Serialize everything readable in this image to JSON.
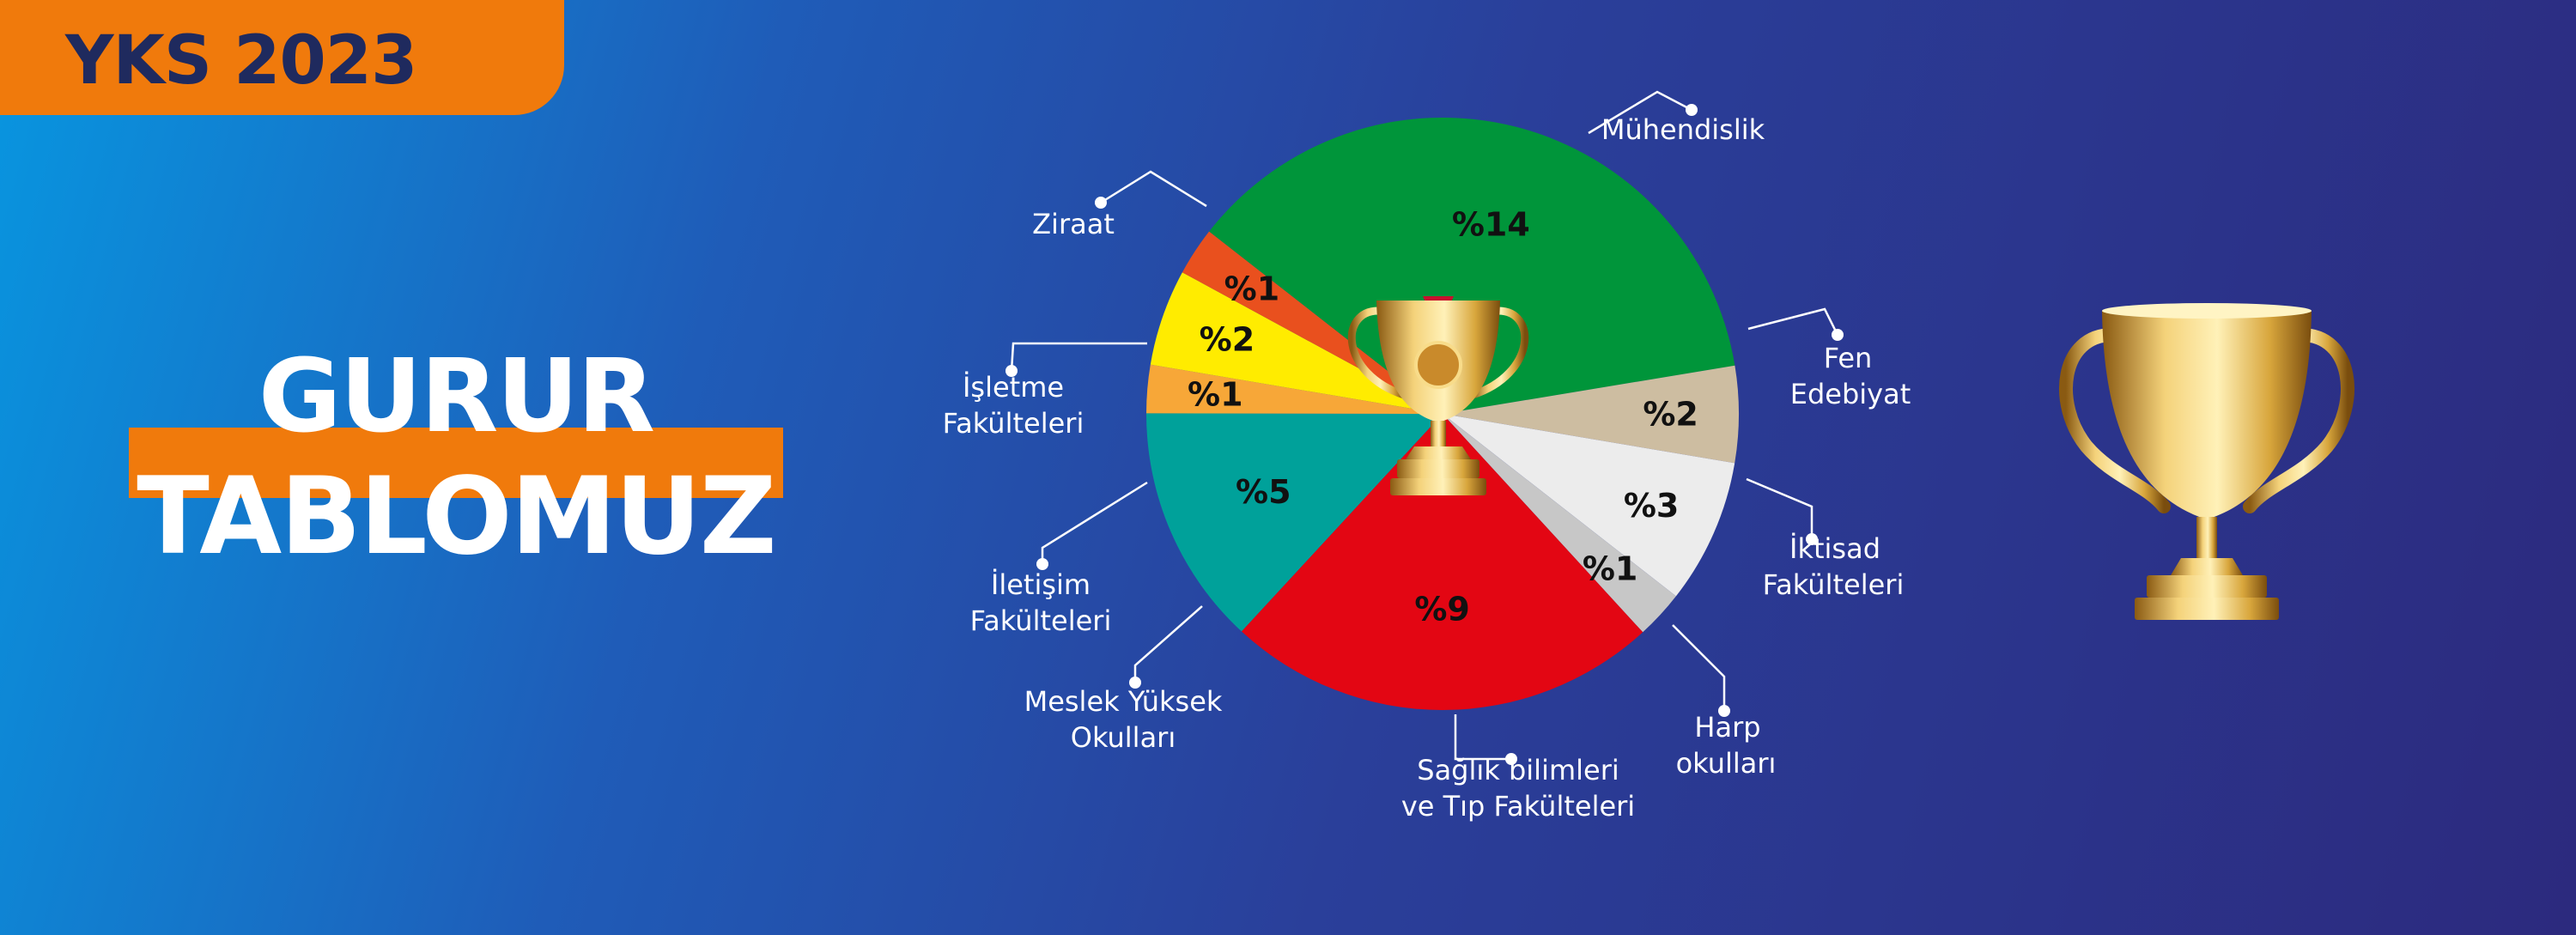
{
  "badge": {
    "text": "YKS 2023"
  },
  "headline": {
    "line1": "GURUR",
    "line2": "TABLOMUZ"
  },
  "colors": {
    "accent_orange": "#f07a0c",
    "badge_text": "#1f2a5e",
    "label_text": "#ffffff",
    "slice_text": "#111111"
  },
  "icons": {
    "center": "trophy-icon",
    "decor": "trophy-icon"
  },
  "chart_data": {
    "type": "pie",
    "title": "",
    "slices": [
      {
        "category": "Mühendislik",
        "label": "%14",
        "value": 14,
        "color": "#00953a"
      },
      {
        "category": "Fen Edebiyat",
        "label": "%2",
        "value": 2,
        "color": "#cdbda1"
      },
      {
        "category": "İktisad Fakülteleri",
        "label": "%3",
        "value": 3,
        "color": "#ececec"
      },
      {
        "category": "Harp okulları",
        "label": "%1",
        "value": 1,
        "color": "#c7c7c7"
      },
      {
        "category": "Sağlık bilimleri ve Tıp Fakülteleri",
        "label": "%9",
        "value": 9,
        "color": "#e30613"
      },
      {
        "category": "Meslek Yüksek Okulları",
        "label": "%5",
        "value": 5,
        "color": "#00a19a"
      },
      {
        "category": "İletişim Fakülteleri",
        "label": "%1",
        "value": 1,
        "color": "#f7a738"
      },
      {
        "category": "İşletme Fakülteleri",
        "label": "%2",
        "value": 2,
        "color": "#ffec00"
      },
      {
        "category": "Ziraat",
        "label": "%1",
        "value": 1,
        "color": "#e9501e"
      }
    ],
    "callout_labels": [
      [
        "Mühendislik"
      ],
      [
        "Fen",
        "Edebiyat"
      ],
      [
        "İktisad",
        "Fakülteleri"
      ],
      [
        "Harp",
        "okulları"
      ],
      [
        "Sağlık bilimleri",
        "ve Tıp Fakülteleri"
      ],
      [
        "Meslek Yüksek",
        "Okulları"
      ],
      [
        "İletişim",
        "Fakülteleri"
      ],
      [
        "İşletme",
        "Fakülteleri"
      ],
      [
        "Ziraat"
      ]
    ]
  }
}
